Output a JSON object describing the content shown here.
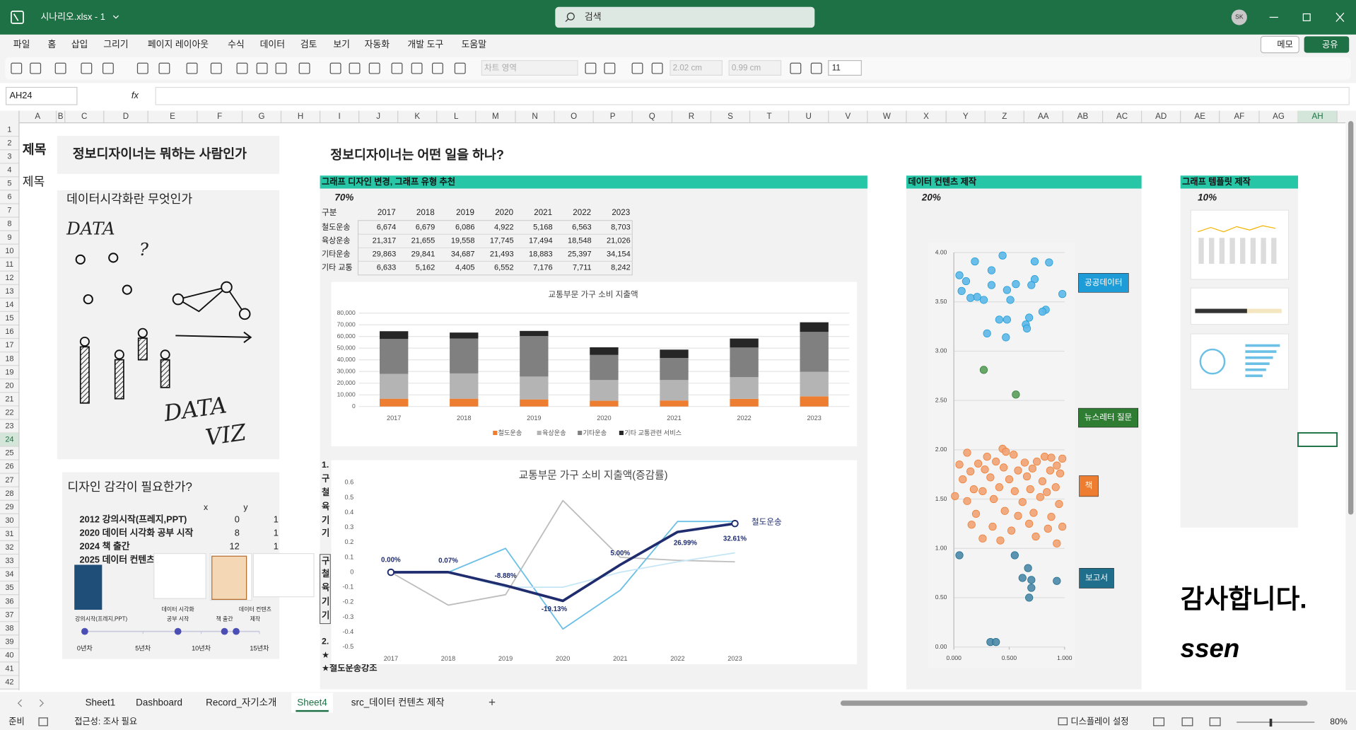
{
  "window": {
    "file": "시나리오.xlsx - 1",
    "search": "검색",
    "user": "SK"
  },
  "menu": [
    "파일",
    "홈",
    "삽입",
    "그리기",
    "페이지 레이아웃",
    "수식",
    "데이터",
    "검토",
    "보기",
    "자동화",
    "개발 도구",
    "도움말"
  ],
  "menu_buttons": [
    "메모",
    "공유"
  ],
  "ribbon": {
    "chart_area": "차트 영역",
    "height": "2.02 cm",
    "width": "0.99 cm",
    "font_size": "11"
  },
  "formula_bar": {
    "name_box": "AH24",
    "fx": "fx"
  },
  "columns": [
    "A",
    "B",
    "C",
    "D",
    "E",
    "F",
    "G",
    "H",
    "I",
    "J",
    "K",
    "L",
    "M",
    "N",
    "O",
    "P",
    "Q",
    "R",
    "S",
    "T",
    "U",
    "V",
    "W",
    "X",
    "Y",
    "Z",
    "AA",
    "AB",
    "AC",
    "AD",
    "AE",
    "AF",
    "AG",
    "AH"
  ],
  "rows": [
    1,
    2,
    3,
    4,
    5,
    6,
    7,
    8,
    9,
    10,
    11,
    12,
    13,
    14,
    15,
    16,
    17,
    18,
    19,
    20,
    21,
    22,
    23,
    24,
    25,
    26,
    27,
    28,
    29,
    30,
    31,
    32,
    33,
    34,
    35,
    36,
    37,
    38,
    39,
    40,
    41,
    42
  ],
  "sheet": {
    "label1": "제목",
    "title1": "정보디자이너는 뭐하는 사람인가",
    "label2": "제목",
    "q1": "데이터시각화란 무엇인가",
    "sketch": {
      "data1": "DATA",
      "question": "?",
      "data2": "DATA",
      "viz": "VIZ"
    },
    "q2": "디자인 감각이 필요한가?",
    "xy_table": {
      "headers": [
        "x",
        "y"
      ],
      "rows": [
        [
          "2012 강의시작(프레지,PPT)",
          0,
          1
        ],
        [
          "2020 데이터 시각화 공부 시작",
          8,
          1
        ],
        [
          "2024 책 출간",
          12,
          1
        ],
        [
          "2025 데이터 컨텐츠"
        ]
      ]
    },
    "title2": "정보디자이너는 어떤 일을 하나?",
    "sections": [
      {
        "header": "그래프 디자인 변경, 그래프 유형 추천",
        "share": "70%"
      },
      {
        "header": "데이터 컨텐츠 제작",
        "share": "20%"
      },
      {
        "header": "그래프 템플릿 제작",
        "share": "10%"
      }
    ],
    "data_table": {
      "header": [
        "구분",
        "2017",
        "2018",
        "2019",
        "2020",
        "2021",
        "2022",
        "2023"
      ],
      "rows": [
        [
          "철도운송",
          "6,674",
          "6,679",
          "6,086",
          "4,922",
          "5,168",
          "6,563",
          "8,703"
        ],
        [
          "육상운송",
          "21,317",
          "21,655",
          "19,558",
          "17,745",
          "17,494",
          "18,548",
          "21,026"
        ],
        [
          "기타운송",
          "29,863",
          "29,841",
          "34,687",
          "21,493",
          "18,883",
          "25,397",
          "34,154"
        ],
        [
          "기타 교통",
          "6,633",
          "5,162",
          "4,405",
          "6,552",
          "7,176",
          "7,711",
          "8,242"
        ]
      ]
    },
    "fragments": [
      "1.",
      "구",
      "철",
      "육",
      "기",
      "기",
      "구",
      "철",
      "육",
      "기",
      "기",
      "2.",
      "★"
    ],
    "note": "★철도운송강조",
    "thanks": "감사합니다.",
    "sign": "ssen"
  },
  "tabs": [
    "Sheet1",
    "Dashboard",
    "Record_자기소개",
    "Sheet4",
    "src_데이터 컨텐츠 제작"
  ],
  "add_tab": "+",
  "status": {
    "ready": "준비",
    "accessibility": "접근성: 조사 필요",
    "display": "디스플레이 설정",
    "zoom": "80%"
  },
  "chart_data": [
    {
      "type": "bar",
      "title": "교통부문 가구 소비 지출액",
      "stacked": true,
      "categories": [
        "2017",
        "2018",
        "2019",
        "2020",
        "2021",
        "2022",
        "2023"
      ],
      "series": [
        {
          "name": "철도운송",
          "color": "#ed7d31",
          "values": [
            6674,
            6679,
            6086,
            4922,
            5168,
            6563,
            8703
          ]
        },
        {
          "name": "육상운송",
          "color": "#b4b4b4",
          "values": [
            21317,
            21655,
            19558,
            17745,
            17494,
            18548,
            21026
          ]
        },
        {
          "name": "기타운송",
          "color": "#808080",
          "values": [
            29863,
            29841,
            34687,
            21493,
            18883,
            25397,
            34154
          ]
        },
        {
          "name": "기타 교통관련 서비스",
          "color": "#262626",
          "values": [
            6633,
            5162,
            4405,
            6552,
            7176,
            7711,
            8242
          ]
        }
      ],
      "ylim": [
        0,
        80000
      ],
      "yticks": [
        0,
        {
          "value": 10000,
          "label": "10,000"
        },
        {
          "value": 20000,
          "label": "20,000"
        },
        {
          "value": 30000,
          "label": "30,000"
        },
        {
          "value": 40000,
          "label": "40,000"
        },
        {
          "value": 50000,
          "label": "50,000"
        },
        {
          "value": 60000,
          "label": "60,000"
        },
        {
          "value": 70000,
          "label": "70,000"
        },
        {
          "value": 80000,
          "label": "80,000"
        }
      ],
      "grid": true,
      "legend": "bottom"
    },
    {
      "type": "line",
      "title": "교통부문 가구 소비 지출액(증감률)",
      "categories": [
        "2017",
        "2018",
        "2019",
        "2020",
        "2021",
        "2022",
        "2023"
      ],
      "series": [
        {
          "color": "#bdbdbd",
          "values": [
            0,
            -0.22,
            -0.15,
            0.48,
            0.1,
            0.08,
            0.07
          ]
        },
        {
          "color": "#6cc0e5",
          "values": [
            0,
            0,
            0.16,
            -0.38,
            -0.12,
            0.34,
            0.34
          ]
        },
        {
          "color": "#c6e6f6",
          "values": [
            0,
            0,
            -0.1,
            -0.1,
            0,
            0.07,
            0.13
          ]
        },
        {
          "name": "철도운송",
          "color": "#1f2d6e",
          "values": [
            0,
            0.0007,
            -0.0888,
            -0.1913,
            0.05,
            0.2699,
            0.3261
          ],
          "value_labels": [
            "0.00%",
            "0.07%",
            "-8.88%",
            "-19.13%",
            "5.00%",
            "26.99%",
            "32.61%"
          ]
        }
      ],
      "ylim": [
        -0.5,
        0.6
      ],
      "yticks": [
        -0.5,
        -0.4,
        -0.3,
        -0.2,
        -0.1,
        0,
        0.1,
        0.2,
        0.3,
        0.4,
        0.5,
        0.6
      ],
      "grid": false
    },
    {
      "type": "scatter",
      "series": [
        {
          "name": "공공데이터",
          "color": "#5bb8e8",
          "legend_color": "#1e9cd7",
          "x": [
            0.19,
            0.44,
            0.73,
            0.86,
            0.05,
            0.34,
            0.11,
            0.56,
            0.73,
            0.7,
            0.98,
            0.07,
            0.21,
            0.34,
            0.48,
            0.15,
            0.27,
            0.51,
            0.83,
            0.8,
            0.68,
            0.41,
            0.48,
            0.65,
            0.3,
            0.47,
            0.66
          ],
          "values": [
            3.91,
            3.97,
            3.91,
            3.9,
            3.77,
            3.82,
            3.71,
            3.68,
            3.73,
            3.67,
            3.58,
            3.61,
            3.55,
            3.67,
            3.62,
            3.54,
            3.52,
            3.52,
            3.42,
            3.4,
            3.34,
            3.32,
            3.32,
            3.27,
            3.18,
            3.14,
            3.23
          ]
        },
        {
          "name": "뉴스레터 질문",
          "color": "#5a9f5a",
          "legend_color": "#2e7d32",
          "x": [
            0.27,
            0.56
          ],
          "values": [
            2.81,
            2.56
          ]
        },
        {
          "name": "책",
          "color": "#f2a273",
          "legend_color": "#ed7d31",
          "x": [
            0.12,
            0.44,
            0.47,
            0.3,
            0.54,
            0.82,
            0.88,
            0.98,
            0.05,
            0.22,
            0.38,
            0.64,
            0.75,
            0.93,
            0.15,
            0.28,
            0.45,
            0.58,
            0.71,
            0.87,
            0.96,
            0.08,
            0.33,
            0.5,
            0.66,
            0.8,
            0.01,
            0.18,
            0.26,
            0.41,
            0.55,
            0.69,
            0.84,
            0.92,
            0.12,
            0.36,
            0.62,
            0.78,
            0.95,
            0.2,
            0.46,
            0.58,
            0.72,
            0.88,
            0.16,
            0.35,
            0.52,
            0.68,
            0.85,
            0.98,
            0.26,
            0.42,
            0.74,
            0.93
          ],
          "values": [
            1.97,
            2.01,
            1.98,
            1.93,
            1.95,
            1.93,
            1.92,
            1.91,
            1.85,
            1.86,
            1.88,
            1.87,
            1.88,
            1.84,
            1.78,
            1.8,
            1.82,
            1.79,
            1.81,
            1.79,
            1.76,
            1.7,
            1.72,
            1.7,
            1.73,
            1.68,
            1.53,
            1.6,
            1.58,
            1.62,
            1.58,
            1.6,
            1.57,
            1.62,
            1.48,
            1.5,
            1.47,
            1.52,
            1.45,
            1.35,
            1.38,
            1.33,
            1.36,
            1.32,
            1.24,
            1.22,
            1.18,
            1.25,
            1.2,
            1.22,
            1.1,
            1.08,
            1.12,
            1.05
          ]
        },
        {
          "name": "보고서",
          "color": "#4a88a8",
          "legend_color": "#1f6e8c",
          "x": [
            0.05,
            0.55,
            0.67,
            0.62,
            0.7,
            0.93,
            0.7,
            0.68,
            0.33,
            0.38
          ],
          "values": [
            0.93,
            0.93,
            0.8,
            0.7,
            0.68,
            0.67,
            0.6,
            0.5,
            0.05,
            0.05
          ]
        }
      ],
      "xlim": [
        0,
        1
      ],
      "xticks": [
        {
          "value": 0,
          "label": "0.000"
        },
        {
          "value": 0.5,
          "label": "0.500"
        },
        {
          "value": 1,
          "label": "1.000"
        }
      ],
      "ylim": [
        0,
        4
      ],
      "yticks": [
        {
          "value": 0,
          "label": "0.00"
        },
        {
          "value": 0.5,
          "label": "0.50"
        },
        {
          "value": 1,
          "label": "1.00"
        },
        {
          "value": 1.5,
          "label": "1.50"
        },
        {
          "value": 2,
          "label": "2.00"
        },
        {
          "value": 2.5,
          "label": "2.50"
        },
        {
          "value": 3,
          "label": "3.00"
        },
        {
          "value": 3.5,
          "label": "3.50"
        },
        {
          "value": 4,
          "label": "4.00"
        }
      ],
      "grid": true
    },
    {
      "type": "dot",
      "values": [
        0,
        8,
        12,
        13
      ],
      "color": "#4b4fb5",
      "labels": [
        [
          "강의시작(프레지,PPT)"
        ],
        [
          "데이터 시각화",
          "공부 시작"
        ],
        [
          "책 출간"
        ],
        [
          "데이터 컨텐츠",
          "제작"
        ]
      ],
      "xlim": [
        0,
        15
      ],
      "xticks": [
        {
          "value": 0,
          "label": "0년차"
        },
        {
          "value": 5,
          "label": "5년차"
        },
        {
          "value": 10,
          "label": "10년차"
        },
        {
          "value": 15,
          "label": "15년차"
        }
      ]
    }
  ]
}
